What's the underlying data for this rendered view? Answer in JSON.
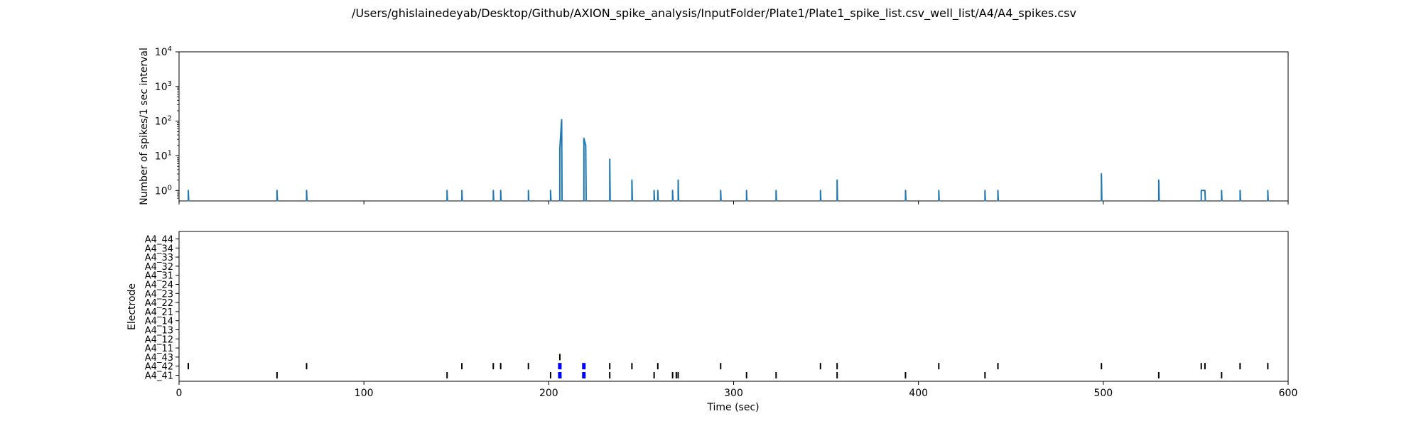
{
  "figure": {
    "title": "/Users/ghislainedeyab/Desktop/Github/AXION_spike_analysis/InputFolder/Plate1/Plate1_spike_list.csv_well_list/A4/A4_spikes.csv"
  },
  "chart_data": [
    {
      "type": "line",
      "ylabel": "Number of spikes/1 sec interval",
      "xlim": [
        0,
        600
      ],
      "yscale": "log",
      "ylim": [
        0.5,
        10000
      ],
      "ytick_values": [
        1,
        10,
        100,
        1000,
        10000
      ],
      "ytick_exponents": [
        "0",
        "1",
        "2",
        "3",
        "4"
      ],
      "ytick_base": "10",
      "xticks": [
        0,
        100,
        200,
        300,
        400,
        500,
        600
      ],
      "color": "#1f77b4",
      "x": [
        5,
        53,
        69,
        145,
        153,
        170,
        174,
        189,
        201,
        206,
        207,
        219,
        220,
        233,
        245,
        257,
        259,
        267,
        270,
        293,
        307,
        323,
        347,
        356,
        393,
        411,
        436,
        443,
        499,
        530,
        553,
        554,
        555,
        564,
        574,
        589
      ],
      "y": [
        1,
        1,
        1,
        1,
        1,
        1,
        1,
        1,
        1,
        16,
        110,
        32,
        20,
        8,
        2,
        1,
        1,
        1,
        2,
        1,
        1,
        1,
        1,
        2,
        1,
        1,
        1,
        1,
        3,
        2,
        1,
        1,
        1,
        1,
        1,
        1
      ]
    },
    {
      "type": "scatter",
      "xlabel": "Time (sec)",
      "ylabel": "Electrode",
      "xlim": [
        0,
        600
      ],
      "xticks": [
        0,
        100,
        200,
        300,
        400,
        500,
        600
      ],
      "xtick_labels": [
        "0",
        "100",
        "200",
        "300",
        "400",
        "500",
        "600"
      ],
      "categories": [
        "A4_41",
        "A4_42",
        "A4_43",
        "A4_11",
        "A4_12",
        "A4_13",
        "A4_14",
        "A4_21",
        "A4_22",
        "A4_23",
        "A4_24",
        "A4_31",
        "A4_32",
        "A4_33",
        "A4_34",
        "A4_44"
      ],
      "spike_color": "#000000",
      "burst_color": "#0000ff",
      "series": [
        {
          "electrode": "A4_41",
          "spikes": [
            53,
            145,
            201,
            233,
            257,
            267,
            269,
            270,
            307,
            323,
            356,
            393,
            436,
            530,
            564
          ],
          "bursts": [
            206,
            219
          ]
        },
        {
          "electrode": "A4_42",
          "spikes": [
            5,
            69,
            153,
            170,
            174,
            189,
            233,
            245,
            259,
            293,
            347,
            356,
            411,
            443,
            499,
            553,
            555,
            574,
            589
          ],
          "bursts": [
            206,
            219
          ]
        },
        {
          "electrode": "A4_43",
          "spikes": [
            206
          ],
          "bursts": []
        }
      ]
    }
  ]
}
